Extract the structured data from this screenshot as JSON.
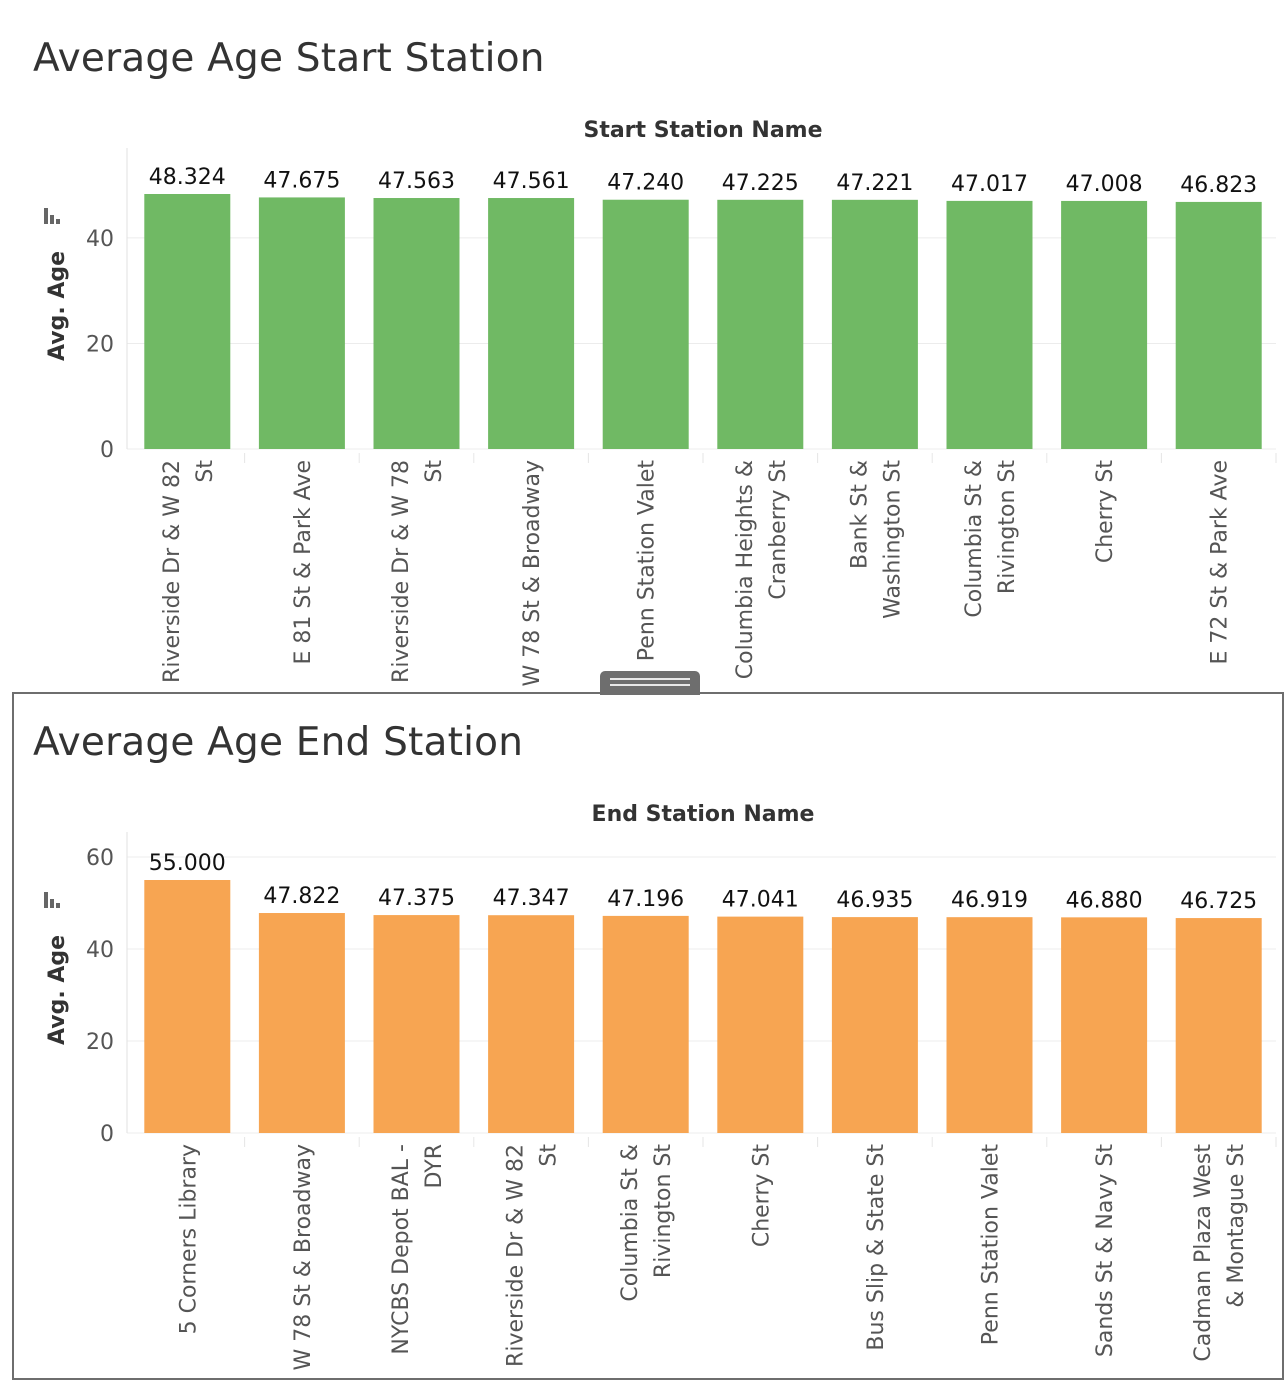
{
  "chart_data": [
    {
      "type": "bar",
      "title": "Average Age Start Station",
      "xlabel": "Start Station Name",
      "ylabel": "Avg. Age",
      "color": "#70b964",
      "ylim": [
        0,
        48.324
      ],
      "yticks": [
        0,
        20,
        40
      ],
      "grid": true,
      "categories": [
        [
          "Riverside Dr & W 82",
          "St"
        ],
        [
          "E 81 St & Park Ave"
        ],
        [
          "Riverside Dr & W 78",
          "St"
        ],
        [
          "W 78 St & Broadway"
        ],
        [
          "Penn Station Valet"
        ],
        [
          "Columbia Heights &",
          "Cranberry St"
        ],
        [
          "Bank St &",
          "Washington St"
        ],
        [
          "Columbia St &",
          "Rivington St"
        ],
        [
          "Cherry St"
        ],
        [
          "E 72 St & Park Ave"
        ]
      ],
      "values": [
        48.324,
        47.675,
        47.563,
        47.561,
        47.24,
        47.225,
        47.221,
        47.017,
        47.008,
        46.823
      ],
      "value_labels": [
        "48.324",
        "47.675",
        "47.563",
        "47.561",
        "47.240",
        "47.225",
        "47.221",
        "47.017",
        "47.008",
        "46.823"
      ]
    },
    {
      "type": "bar",
      "title": "Average Age End Station",
      "xlabel": "End Station Name",
      "ylabel": "Avg. Age",
      "color": "#f7a552",
      "ylim": [
        0,
        60
      ],
      "yticks": [
        0,
        20,
        40,
        60
      ],
      "grid": true,
      "categories": [
        [
          "5 Corners Library"
        ],
        [
          "W 78 St & Broadway"
        ],
        [
          "NYCBS Depot BAL -",
          "DYR"
        ],
        [
          "Riverside Dr & W 82",
          "St"
        ],
        [
          "Columbia St &",
          "Rivington St"
        ],
        [
          "Cherry St"
        ],
        [
          "Bus Slip & State St"
        ],
        [
          "Penn Station Valet"
        ],
        [
          "Sands St & Navy St"
        ],
        [
          "Cadman Plaza West",
          "& Montague St"
        ]
      ],
      "values": [
        55.0,
        47.822,
        47.375,
        47.347,
        47.196,
        47.041,
        46.935,
        46.919,
        46.88,
        46.725
      ],
      "value_labels": [
        "55.000",
        "47.822",
        "47.375",
        "47.347",
        "47.196",
        "47.041",
        "46.935",
        "46.919",
        "46.880",
        "46.725"
      ]
    }
  ]
}
